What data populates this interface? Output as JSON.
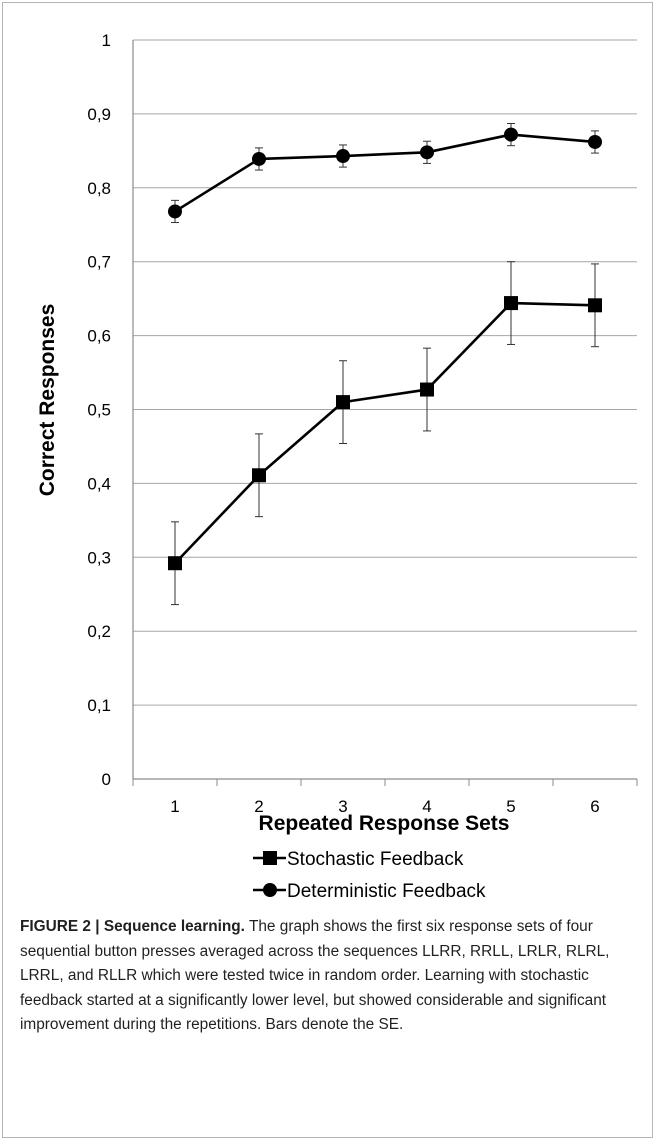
{
  "chart_data": {
    "type": "line",
    "categories": [
      "1",
      "2",
      "3",
      "4",
      "5",
      "6"
    ],
    "xlabel": "Repeated Response Sets",
    "ylabel": "Correct Responses",
    "ylim": [
      0,
      1
    ],
    "yticks": [
      "0",
      "0,1",
      "0,2",
      "0,3",
      "0,4",
      "0,5",
      "0,6",
      "0,7",
      "0,8",
      "0,9",
      "1"
    ],
    "grid": "horizontal",
    "legend_position": "bottom",
    "series": [
      {
        "name": "Stochastic Feedback",
        "marker": "square",
        "values": [
          0.292,
          0.411,
          0.51,
          0.527,
          0.644,
          0.641
        ],
        "errors": [
          0.056,
          0.056,
          0.056,
          0.056,
          0.056,
          0.056
        ]
      },
      {
        "name": "Deterministic Feedback",
        "marker": "circle",
        "values": [
          0.768,
          0.839,
          0.843,
          0.848,
          0.872,
          0.862
        ],
        "errors": [
          0.015,
          0.015,
          0.015,
          0.015,
          0.015,
          0.015
        ]
      }
    ],
    "colors": {
      "line": "#000000",
      "grid": "#a6a6a6",
      "axis": "#8c8c8c"
    }
  },
  "caption": {
    "label": "FIGURE 2 | Sequence learning.",
    "text": " The graph shows the first six response sets of four sequential button presses averaged across the sequences LLRR, RRLL, LRLR, RLRL, LRRL, and RLLR which were tested twice in random order. Learning with stochastic feedback started at a significantly lower level, but showed considerable and significant improvement during the repetitions. Bars denote the SE."
  }
}
